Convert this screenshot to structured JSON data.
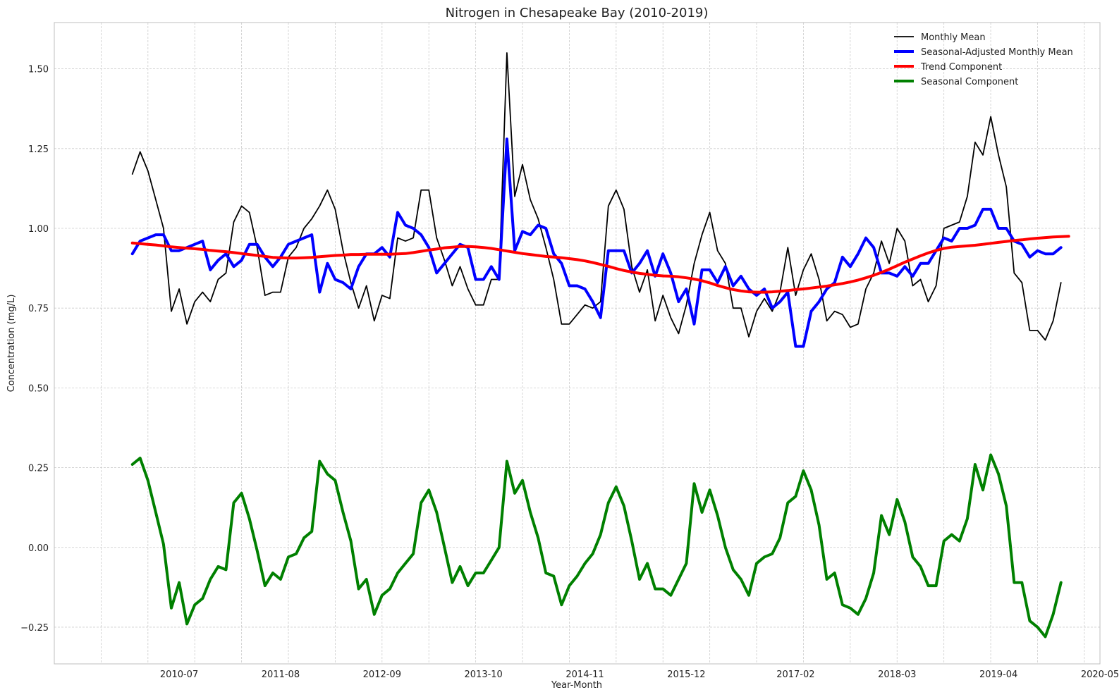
{
  "chart_data": {
    "type": "line",
    "title": "Nitrogen in Chesapeake Bay (2010-2019)",
    "xlabel": "Year-Month",
    "ylabel": "Concentration (mg/L)",
    "ylim": [
      -0.365,
      1.645
    ],
    "xlim": [
      "2009-03",
      "2020-05"
    ],
    "x_ticks": [
      "2010-07",
      "2011-08",
      "2012-09",
      "2013-10",
      "2014-11",
      "2015-12",
      "2017-02",
      "2018-03",
      "2019-04",
      "2020-05"
    ],
    "y_ticks": [
      -0.25,
      0.0,
      0.25,
      0.5,
      0.75,
      1.0,
      1.25,
      1.5
    ],
    "y_tick_labels": [
      "−0.25",
      "0.00",
      "0.25",
      "0.50",
      "0.75",
      "1.00",
      "1.25",
      "1.50"
    ],
    "grid": true,
    "legend_position": "top-right",
    "start_month": "2010-01",
    "series": [
      {
        "name": "Monthly Mean",
        "color": "#000000",
        "width": 1.8,
        "values": [
          1.17,
          1.24,
          1.18,
          1.09,
          1.0,
          0.74,
          0.81,
          0.7,
          0.77,
          0.8,
          0.77,
          0.84,
          0.86,
          1.02,
          1.07,
          1.05,
          0.94,
          0.79,
          0.8,
          0.8,
          0.91,
          0.94,
          1.0,
          1.03,
          1.07,
          1.12,
          1.06,
          0.93,
          0.83,
          0.75,
          0.82,
          0.71,
          0.79,
          0.78,
          0.97,
          0.96,
          0.97,
          1.12,
          1.12,
          0.97,
          0.9,
          0.82,
          0.88,
          0.81,
          0.76,
          0.76,
          0.84,
          0.84,
          1.55,
          1.1,
          1.2,
          1.09,
          1.03,
          0.94,
          0.84,
          0.7,
          0.7,
          0.73,
          0.76,
          0.75,
          0.77,
          1.07,
          1.12,
          1.06,
          0.88,
          0.8,
          0.87,
          0.71,
          0.79,
          0.72,
          0.67,
          0.76,
          0.89,
          0.98,
          1.05,
          0.93,
          0.89,
          0.75,
          0.75,
          0.66,
          0.74,
          0.78,
          0.74,
          0.8,
          0.94,
          0.79,
          0.87,
          0.92,
          0.84,
          0.71,
          0.74,
          0.73,
          0.69,
          0.7,
          0.81,
          0.86,
          0.96,
          0.89,
          1.0,
          0.96,
          0.82,
          0.84,
          0.77,
          0.82,
          1.0,
          1.01,
          1.02,
          1.1,
          1.27,
          1.23,
          1.35,
          1.23,
          1.13,
          0.86,
          0.83,
          0.68,
          0.68,
          0.65,
          0.71,
          0.83
        ]
      },
      {
        "name": "Seasonal-Adjusted Monthly Mean",
        "color": "#0000ff",
        "width": 4,
        "values": [
          0.92,
          0.96,
          0.97,
          0.98,
          0.98,
          0.93,
          0.93,
          0.94,
          0.95,
          0.96,
          0.87,
          0.9,
          0.92,
          0.88,
          0.9,
          0.95,
          0.95,
          0.91,
          0.88,
          0.91,
          0.95,
          0.96,
          0.97,
          0.98,
          0.8,
          0.89,
          0.84,
          0.83,
          0.81,
          0.88,
          0.92,
          0.92,
          0.94,
          0.91,
          1.05,
          1.01,
          1.0,
          0.98,
          0.94,
          0.86,
          0.89,
          0.92,
          0.95,
          0.94,
          0.84,
          0.84,
          0.88,
          0.84,
          1.28,
          0.93,
          0.99,
          0.98,
          1.01,
          1.0,
          0.92,
          0.89,
          0.82,
          0.82,
          0.81,
          0.77,
          0.72,
          0.93,
          0.93,
          0.93,
          0.86,
          0.89,
          0.93,
          0.85,
          0.92,
          0.86,
          0.77,
          0.81,
          0.7,
          0.87,
          0.87,
          0.83,
          0.88,
          0.82,
          0.85,
          0.81,
          0.79,
          0.81,
          0.75,
          0.77,
          0.8,
          0.63,
          0.63,
          0.74,
          0.77,
          0.81,
          0.83,
          0.91,
          0.88,
          0.92,
          0.97,
          0.94,
          0.86,
          0.86,
          0.85,
          0.88,
          0.85,
          0.89,
          0.89,
          0.93,
          0.97,
          0.96,
          1.0,
          1.0,
          1.01,
          1.06,
          1.06,
          1.0,
          1.0,
          0.96,
          0.95,
          0.91,
          0.93,
          0.92,
          0.92,
          0.94
        ]
      },
      {
        "name": "Trend Component",
        "color": "#ff0000",
        "width": 4,
        "values": [
          0.954,
          0.952,
          0.95,
          0.948,
          0.945,
          0.942,
          0.94,
          0.938,
          0.936,
          0.934,
          0.931,
          0.929,
          0.927,
          0.924,
          0.921,
          0.918,
          0.915,
          0.912,
          0.909,
          0.908,
          0.907,
          0.907,
          0.908,
          0.909,
          0.911,
          0.913,
          0.915,
          0.916,
          0.918,
          0.918,
          0.919,
          0.919,
          0.919,
          0.919,
          0.92,
          0.921,
          0.924,
          0.928,
          0.932,
          0.935,
          0.939,
          0.941,
          0.943,
          0.943,
          0.942,
          0.94,
          0.937,
          0.933,
          0.929,
          0.925,
          0.921,
          0.918,
          0.915,
          0.912,
          0.91,
          0.908,
          0.905,
          0.902,
          0.898,
          0.893,
          0.887,
          0.881,
          0.874,
          0.868,
          0.863,
          0.859,
          0.856,
          0.853,
          0.851,
          0.85,
          0.848,
          0.845,
          0.841,
          0.836,
          0.829,
          0.821,
          0.814,
          0.808,
          0.804,
          0.801,
          0.8,
          0.8,
          0.801,
          0.803,
          0.805,
          0.808,
          0.81,
          0.813,
          0.816,
          0.819,
          0.823,
          0.827,
          0.832,
          0.838,
          0.845,
          0.853,
          0.862,
          0.872,
          0.883,
          0.894,
          0.904,
          0.914,
          0.923,
          0.931,
          0.937,
          0.941,
          0.943,
          0.945,
          0.947,
          0.95,
          0.953,
          0.956,
          0.959,
          0.962,
          0.964,
          0.967,
          0.969,
          0.971,
          0.973,
          0.974,
          0.975
        ]
      },
      {
        "name": "Seasonal Component",
        "color": "#008000",
        "width": 4,
        "values": [
          0.26,
          0.28,
          0.21,
          0.11,
          0.01,
          -0.19,
          -0.11,
          -0.24,
          -0.18,
          -0.16,
          -0.1,
          -0.06,
          -0.07,
          0.14,
          0.17,
          0.09,
          -0.01,
          -0.12,
          -0.08,
          -0.1,
          -0.03,
          -0.02,
          0.03,
          0.05,
          0.27,
          0.23,
          0.21,
          0.11,
          0.02,
          -0.13,
          -0.1,
          -0.21,
          -0.15,
          -0.13,
          -0.08,
          -0.05,
          -0.02,
          0.14,
          0.18,
          0.11,
          0.0,
          -0.11,
          -0.06,
          -0.12,
          -0.08,
          -0.08,
          -0.04,
          0.0,
          0.27,
          0.17,
          0.21,
          0.11,
          0.03,
          -0.08,
          -0.09,
          -0.18,
          -0.12,
          -0.09,
          -0.05,
          -0.02,
          0.04,
          0.14,
          0.19,
          0.13,
          0.02,
          -0.1,
          -0.05,
          -0.13,
          -0.13,
          -0.15,
          -0.1,
          -0.05,
          0.2,
          0.11,
          0.18,
          0.1,
          0.0,
          -0.07,
          -0.1,
          -0.15,
          -0.05,
          -0.03,
          -0.02,
          0.03,
          0.14,
          0.16,
          0.24,
          0.18,
          0.07,
          -0.1,
          -0.08,
          -0.18,
          -0.19,
          -0.21,
          -0.16,
          -0.08,
          0.1,
          0.04,
          0.15,
          0.08,
          -0.03,
          -0.06,
          -0.12,
          -0.12,
          0.02,
          0.04,
          0.02,
          0.09,
          0.26,
          0.18,
          0.29,
          0.23,
          0.13,
          -0.11,
          -0.11,
          -0.23,
          -0.25,
          -0.28,
          -0.21,
          -0.11
        ]
      }
    ]
  }
}
